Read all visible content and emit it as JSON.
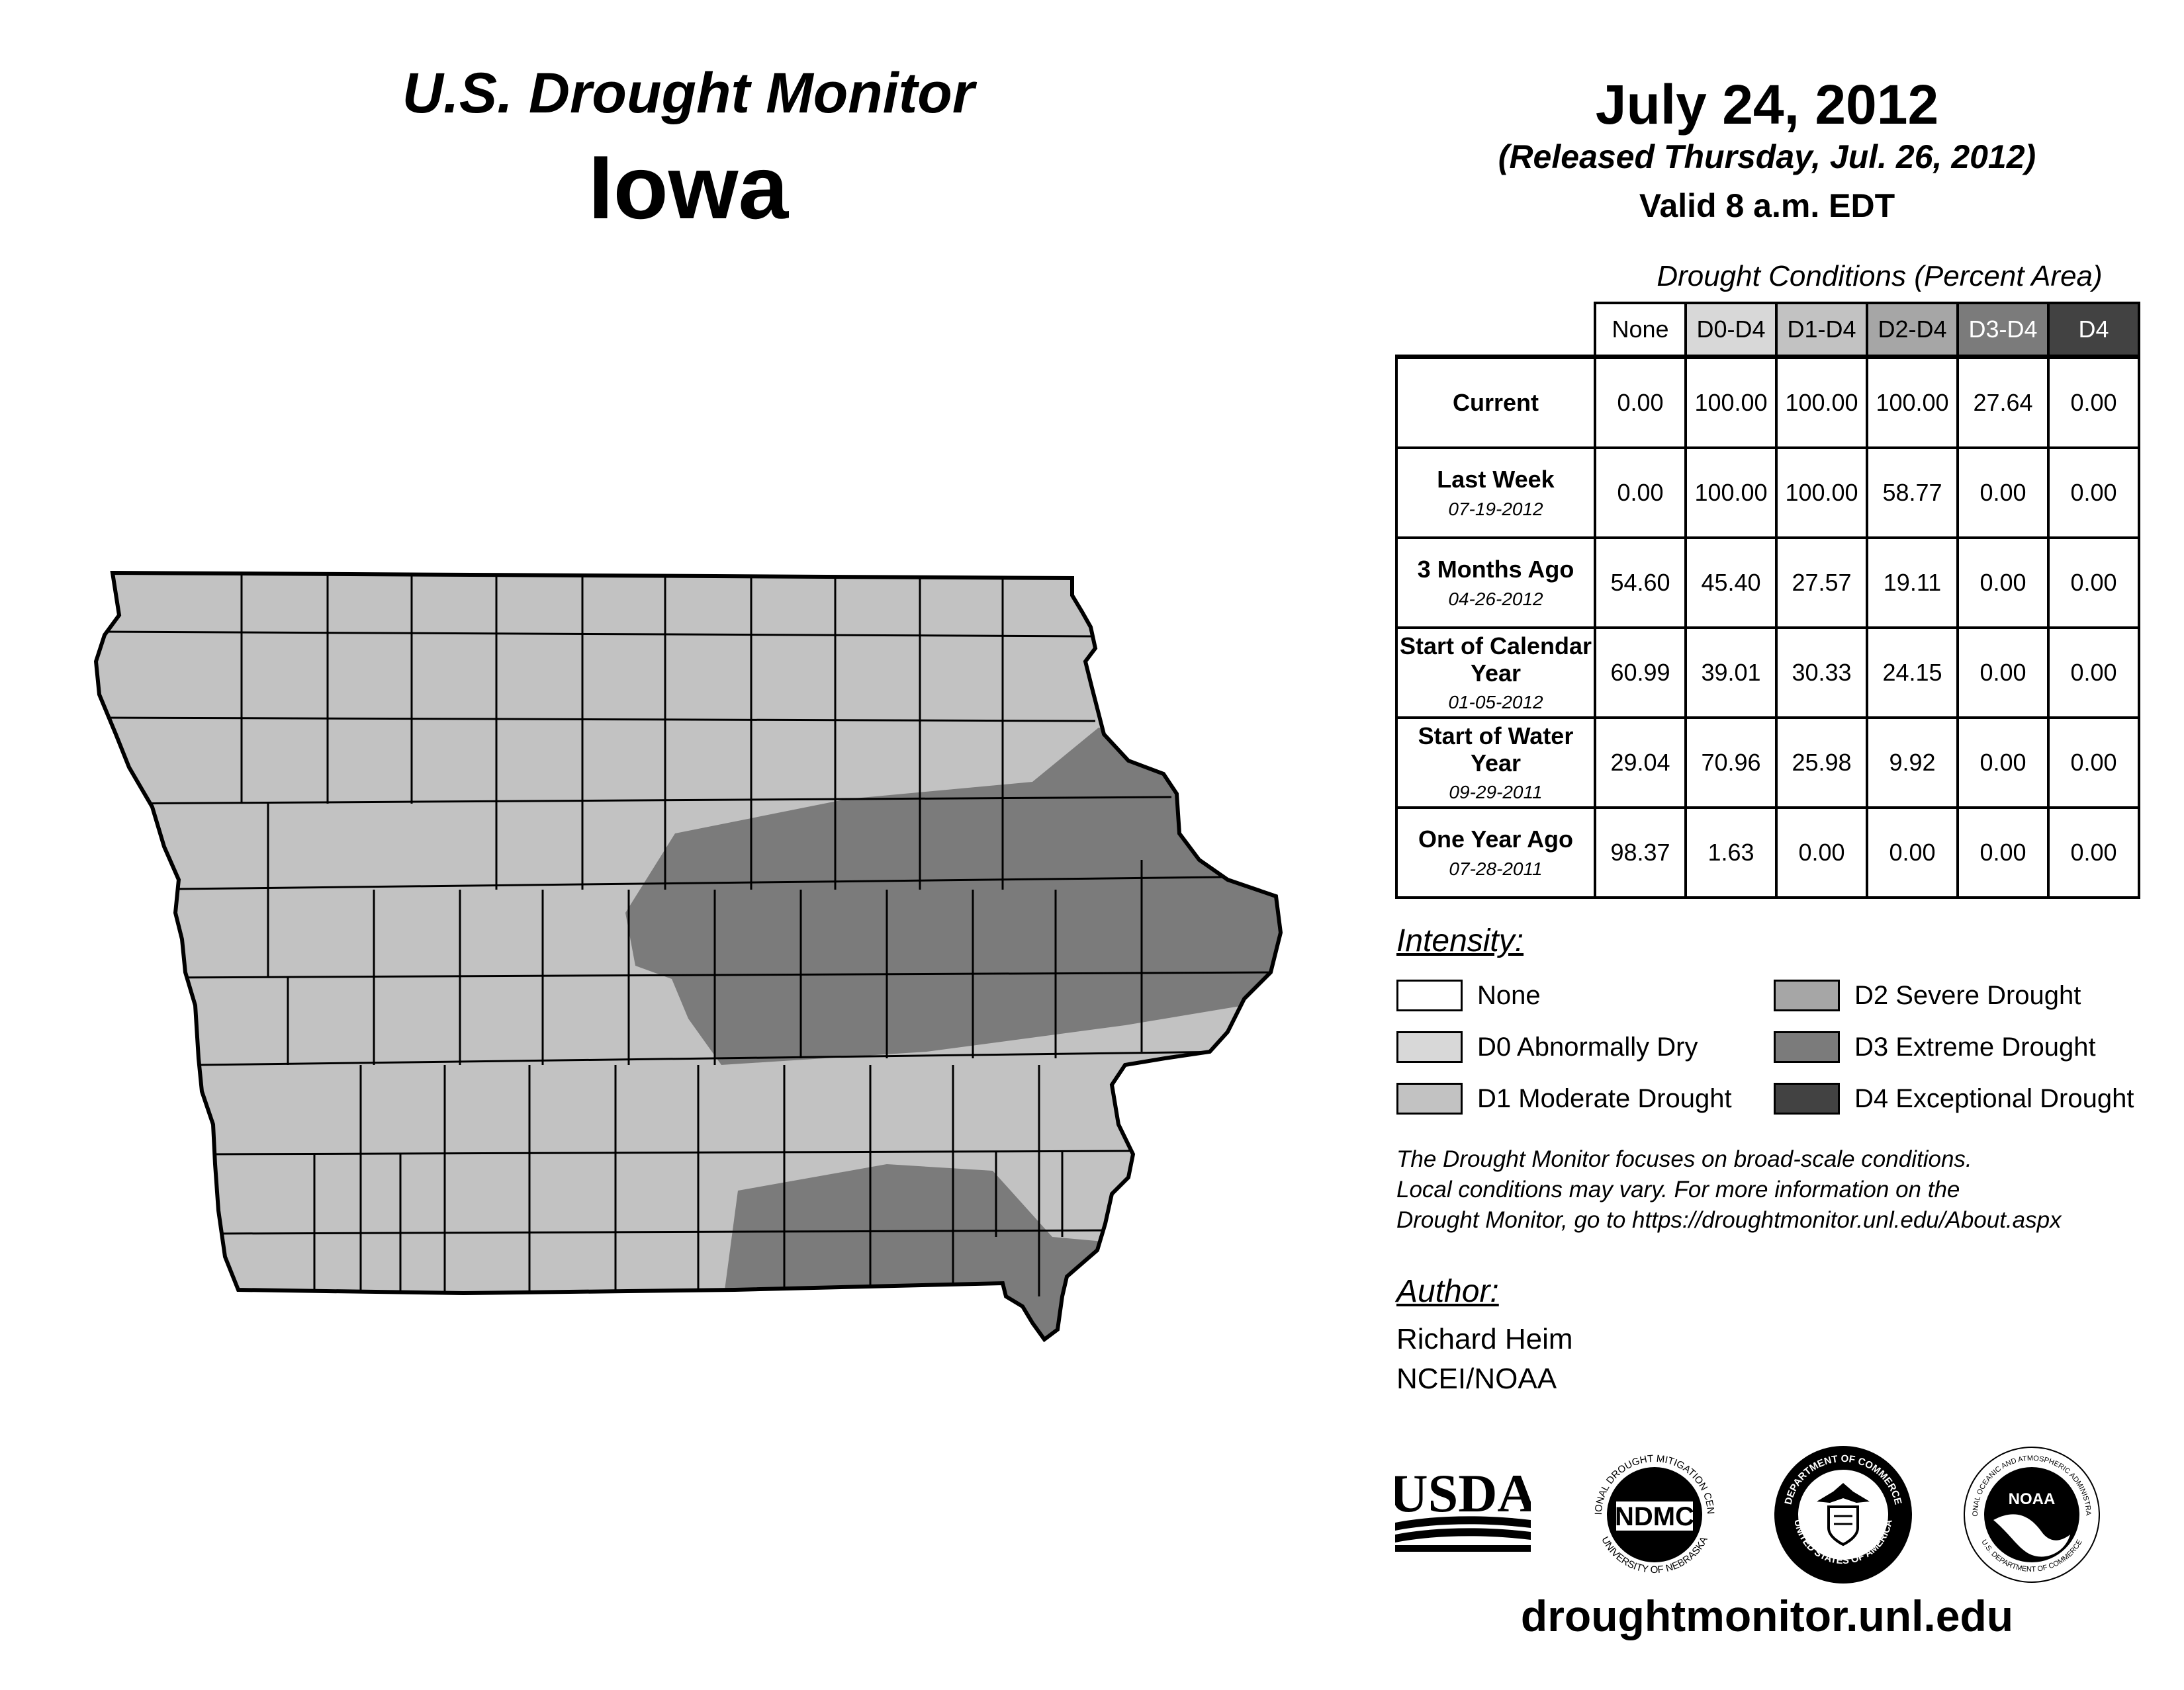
{
  "header": {
    "title": "U.S. Drought Monitor",
    "state": "Iowa"
  },
  "date": {
    "main": "July 24, 2012",
    "release": "(Released Thursday, Jul. 26, 2012)",
    "valid": "Valid 8 a.m. EDT"
  },
  "table": {
    "caption": "Drought Conditions (Percent Area)",
    "columns": [
      "None",
      "D0-D4",
      "D1-D4",
      "D2-D4",
      "D3-D4",
      "D4"
    ],
    "rows": [
      {
        "label": "Current",
        "date": "",
        "values": [
          "0.00",
          "100.00",
          "100.00",
          "100.00",
          "27.64",
          "0.00"
        ]
      },
      {
        "label": "Last Week",
        "date": "07-19-2012",
        "values": [
          "0.00",
          "100.00",
          "100.00",
          "58.77",
          "0.00",
          "0.00"
        ]
      },
      {
        "label": "3 Months Ago",
        "date": "04-26-2012",
        "values": [
          "54.60",
          "45.40",
          "27.57",
          "19.11",
          "0.00",
          "0.00"
        ]
      },
      {
        "label": "Start of Calendar Year",
        "date": "01-05-2012",
        "values": [
          "60.99",
          "39.01",
          "30.33",
          "24.15",
          "0.00",
          "0.00"
        ]
      },
      {
        "label": "Start of Water Year",
        "date": "09-29-2011",
        "values": [
          "29.04",
          "70.96",
          "25.98",
          "9.92",
          "0.00",
          "0.00"
        ]
      },
      {
        "label": "One Year Ago",
        "date": "07-28-2011",
        "values": [
          "98.37",
          "1.63",
          "0.00",
          "0.00",
          "0.00",
          "0.00"
        ]
      }
    ]
  },
  "legend": {
    "title": "Intensity:",
    "items": [
      {
        "label": "None",
        "color": "#ffffff"
      },
      {
        "label": "D0 Abnormally Dry",
        "color": "#d8d8d8"
      },
      {
        "label": "D1 Moderate Drought",
        "color": "#c2c2c2"
      },
      {
        "label": "D2 Severe Drought",
        "color": "#a6a6a6"
      },
      {
        "label": "D3 Extreme Drought",
        "color": "#7b7b7b"
      },
      {
        "label": "D4 Exceptional Drought",
        "color": "#424242"
      }
    ]
  },
  "note": {
    "line1": "The Drought Monitor focuses on broad-scale conditions.",
    "line2": "Local conditions may vary. For more information on the",
    "line3": "Drought Monitor, go to https://droughtmonitor.unl.edu/About.aspx"
  },
  "author": {
    "title": "Author:",
    "name": "Richard Heim",
    "org": "NCEI/NOAA"
  },
  "logos": {
    "usda": "USDA",
    "ndmc": "NDMC",
    "ndmc_ring_top": "NATIONAL DROUGHT MITIGATION CENTER",
    "ndmc_ring_bottom": "UNIVERSITY OF NEBRASKA",
    "doc_ring_top": "DEPARTMENT OF COMMERCE",
    "doc_ring_bottom": "UNITED STATES OF AMERICA",
    "noaa": "NOAA",
    "noaa_ring_top": "NATIONAL OCEANIC AND ATMOSPHERIC ADMINISTRATION",
    "noaa_ring_bottom": "U.S. DEPARTMENT OF COMMERCE"
  },
  "footer": {
    "url": "droughtmonitor.unl.edu"
  },
  "map_colors": {
    "d1": "#c2c2c2",
    "d3": "#7b7b7b"
  }
}
